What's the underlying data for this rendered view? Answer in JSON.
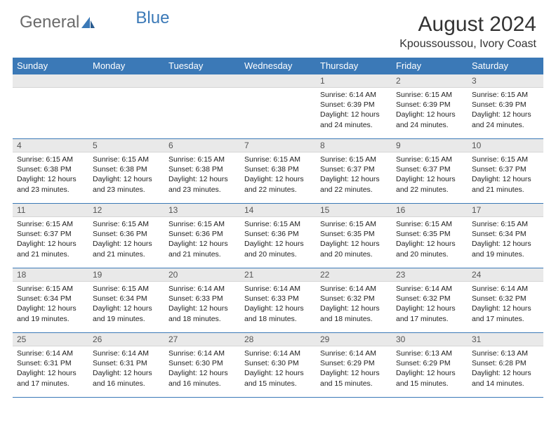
{
  "brand": {
    "part1": "General",
    "part2": "Blue"
  },
  "title": "August 2024",
  "location": "Kpoussoussou, Ivory Coast",
  "colors": {
    "header_bg": "#3b79b7",
    "header_text": "#ffffff",
    "daynum_bg": "#e9e9e9",
    "border": "#3b79b7",
    "body_text": "#222222",
    "page_bg": "#ffffff"
  },
  "day_headers": [
    "Sunday",
    "Monday",
    "Tuesday",
    "Wednesday",
    "Thursday",
    "Friday",
    "Saturday"
  ],
  "weeks": [
    [
      {
        "n": "",
        "sr": "",
        "ss": "",
        "dl": ""
      },
      {
        "n": "",
        "sr": "",
        "ss": "",
        "dl": ""
      },
      {
        "n": "",
        "sr": "",
        "ss": "",
        "dl": ""
      },
      {
        "n": "",
        "sr": "",
        "ss": "",
        "dl": ""
      },
      {
        "n": "1",
        "sr": "6:14 AM",
        "ss": "6:39 PM",
        "dl": "12 hours and 24 minutes."
      },
      {
        "n": "2",
        "sr": "6:15 AM",
        "ss": "6:39 PM",
        "dl": "12 hours and 24 minutes."
      },
      {
        "n": "3",
        "sr": "6:15 AM",
        "ss": "6:39 PM",
        "dl": "12 hours and 24 minutes."
      }
    ],
    [
      {
        "n": "4",
        "sr": "6:15 AM",
        "ss": "6:38 PM",
        "dl": "12 hours and 23 minutes."
      },
      {
        "n": "5",
        "sr": "6:15 AM",
        "ss": "6:38 PM",
        "dl": "12 hours and 23 minutes."
      },
      {
        "n": "6",
        "sr": "6:15 AM",
        "ss": "6:38 PM",
        "dl": "12 hours and 23 minutes."
      },
      {
        "n": "7",
        "sr": "6:15 AM",
        "ss": "6:38 PM",
        "dl": "12 hours and 22 minutes."
      },
      {
        "n": "8",
        "sr": "6:15 AM",
        "ss": "6:37 PM",
        "dl": "12 hours and 22 minutes."
      },
      {
        "n": "9",
        "sr": "6:15 AM",
        "ss": "6:37 PM",
        "dl": "12 hours and 22 minutes."
      },
      {
        "n": "10",
        "sr": "6:15 AM",
        "ss": "6:37 PM",
        "dl": "12 hours and 21 minutes."
      }
    ],
    [
      {
        "n": "11",
        "sr": "6:15 AM",
        "ss": "6:37 PM",
        "dl": "12 hours and 21 minutes."
      },
      {
        "n": "12",
        "sr": "6:15 AM",
        "ss": "6:36 PM",
        "dl": "12 hours and 21 minutes."
      },
      {
        "n": "13",
        "sr": "6:15 AM",
        "ss": "6:36 PM",
        "dl": "12 hours and 21 minutes."
      },
      {
        "n": "14",
        "sr": "6:15 AM",
        "ss": "6:36 PM",
        "dl": "12 hours and 20 minutes."
      },
      {
        "n": "15",
        "sr": "6:15 AM",
        "ss": "6:35 PM",
        "dl": "12 hours and 20 minutes."
      },
      {
        "n": "16",
        "sr": "6:15 AM",
        "ss": "6:35 PM",
        "dl": "12 hours and 20 minutes."
      },
      {
        "n": "17",
        "sr": "6:15 AM",
        "ss": "6:34 PM",
        "dl": "12 hours and 19 minutes."
      }
    ],
    [
      {
        "n": "18",
        "sr": "6:15 AM",
        "ss": "6:34 PM",
        "dl": "12 hours and 19 minutes."
      },
      {
        "n": "19",
        "sr": "6:15 AM",
        "ss": "6:34 PM",
        "dl": "12 hours and 19 minutes."
      },
      {
        "n": "20",
        "sr": "6:14 AM",
        "ss": "6:33 PM",
        "dl": "12 hours and 18 minutes."
      },
      {
        "n": "21",
        "sr": "6:14 AM",
        "ss": "6:33 PM",
        "dl": "12 hours and 18 minutes."
      },
      {
        "n": "22",
        "sr": "6:14 AM",
        "ss": "6:32 PM",
        "dl": "12 hours and 18 minutes."
      },
      {
        "n": "23",
        "sr": "6:14 AM",
        "ss": "6:32 PM",
        "dl": "12 hours and 17 minutes."
      },
      {
        "n": "24",
        "sr": "6:14 AM",
        "ss": "6:32 PM",
        "dl": "12 hours and 17 minutes."
      }
    ],
    [
      {
        "n": "25",
        "sr": "6:14 AM",
        "ss": "6:31 PM",
        "dl": "12 hours and 17 minutes."
      },
      {
        "n": "26",
        "sr": "6:14 AM",
        "ss": "6:31 PM",
        "dl": "12 hours and 16 minutes."
      },
      {
        "n": "27",
        "sr": "6:14 AM",
        "ss": "6:30 PM",
        "dl": "12 hours and 16 minutes."
      },
      {
        "n": "28",
        "sr": "6:14 AM",
        "ss": "6:30 PM",
        "dl": "12 hours and 15 minutes."
      },
      {
        "n": "29",
        "sr": "6:14 AM",
        "ss": "6:29 PM",
        "dl": "12 hours and 15 minutes."
      },
      {
        "n": "30",
        "sr": "6:13 AM",
        "ss": "6:29 PM",
        "dl": "12 hours and 15 minutes."
      },
      {
        "n": "31",
        "sr": "6:13 AM",
        "ss": "6:28 PM",
        "dl": "12 hours and 14 minutes."
      }
    ]
  ],
  "labels": {
    "sunrise": "Sunrise: ",
    "sunset": "Sunset: ",
    "daylight": "Daylight: "
  }
}
